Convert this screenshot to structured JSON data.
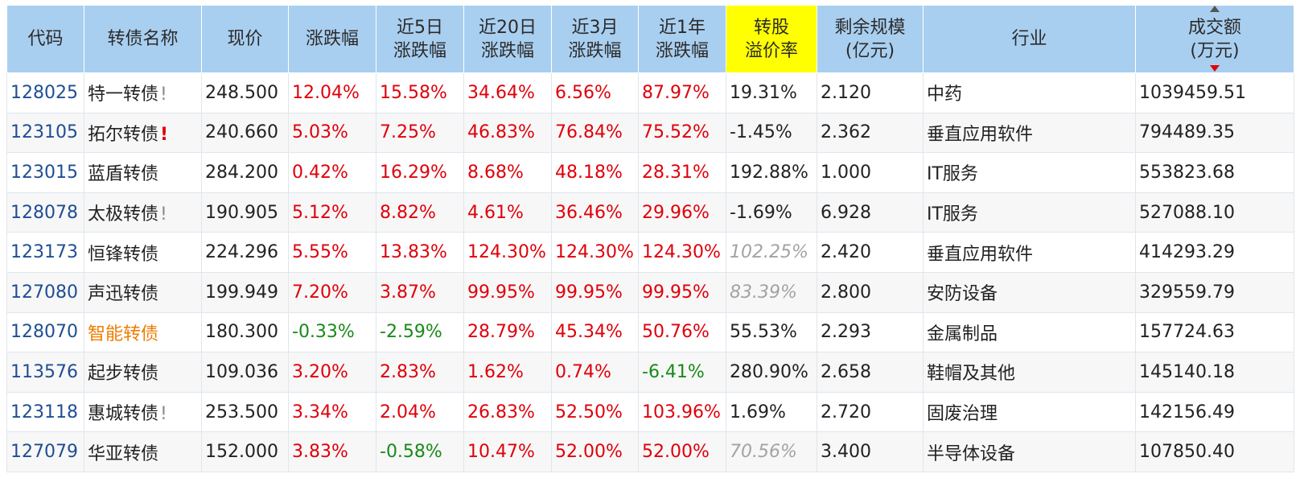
{
  "columns": [
    {
      "key": "code",
      "label": "代码"
    },
    {
      "key": "name",
      "label": "转债名称"
    },
    {
      "key": "price",
      "label": "现价"
    },
    {
      "key": "chg",
      "label": "涨跌幅"
    },
    {
      "key": "chg5d",
      "label": "近5日\n涨跌幅"
    },
    {
      "key": "chg20d",
      "label": "近20日\n涨跌幅"
    },
    {
      "key": "chg3m",
      "label": "近3月\n涨跌幅"
    },
    {
      "key": "chg1y",
      "label": "近1年\n涨跌幅"
    },
    {
      "key": "premium",
      "label": "转股\n溢价率"
    },
    {
      "key": "remain",
      "label": "剩余规模\n(亿元)"
    },
    {
      "key": "industry",
      "label": "行业"
    },
    {
      "key": "turnover",
      "label": "成交额\n(万元)"
    }
  ],
  "colors": {
    "header_bg": "#a9cff0",
    "highlight_bg": "#ffff00",
    "up": "#e0000a",
    "down": "#188a18",
    "code": "#1f4e93",
    "orange": "#ee7d00",
    "gray": "#a3a3a3"
  },
  "sort_indicator": "turnover-descending",
  "rows": [
    {
      "code": "128025",
      "name": "特一转债",
      "flag": "!",
      "flag_style": "gray",
      "name_style": "",
      "price": "248.500",
      "chg": "12.04%",
      "chg_c": "up",
      "chg5d": "15.58%",
      "chg5d_c": "up",
      "chg20d": "34.64%",
      "chg20d_c": "up",
      "chg3m": "6.56%",
      "chg3m_c": "up",
      "chg1y": "87.97%",
      "chg1y_c": "up",
      "premium": "19.31%",
      "premium_style": "",
      "remain": "2.120",
      "industry": "中药",
      "turnover": "1039459.51"
    },
    {
      "code": "123105",
      "name": "拓尔转债",
      "flag": "!",
      "flag_style": "red",
      "name_style": "",
      "price": "240.660",
      "chg": "5.03%",
      "chg_c": "up",
      "chg5d": "7.25%",
      "chg5d_c": "up",
      "chg20d": "46.83%",
      "chg20d_c": "up",
      "chg3m": "76.84%",
      "chg3m_c": "up",
      "chg1y": "75.52%",
      "chg1y_c": "up",
      "premium": "-1.45%",
      "premium_style": "",
      "remain": "2.362",
      "industry": "垂直应用软件",
      "turnover": "794489.35"
    },
    {
      "code": "123015",
      "name": "蓝盾转债",
      "flag": "",
      "flag_style": "",
      "name_style": "",
      "price": "284.200",
      "chg": "0.42%",
      "chg_c": "up",
      "chg5d": "16.29%",
      "chg5d_c": "up",
      "chg20d": "8.68%",
      "chg20d_c": "up",
      "chg3m": "48.18%",
      "chg3m_c": "up",
      "chg1y": "28.31%",
      "chg1y_c": "up",
      "premium": "192.88%",
      "premium_style": "",
      "remain": "1.000",
      "industry": "IT服务",
      "turnover": "553823.68"
    },
    {
      "code": "128078",
      "name": "太极转债",
      "flag": "!",
      "flag_style": "gray",
      "name_style": "",
      "price": "190.905",
      "chg": "5.12%",
      "chg_c": "up",
      "chg5d": "8.82%",
      "chg5d_c": "up",
      "chg20d": "4.61%",
      "chg20d_c": "up",
      "chg3m": "36.46%",
      "chg3m_c": "up",
      "chg1y": "29.96%",
      "chg1y_c": "up",
      "premium": "-1.69%",
      "premium_style": "",
      "remain": "6.928",
      "industry": "IT服务",
      "turnover": "527088.10"
    },
    {
      "code": "123173",
      "name": "恒锋转债",
      "flag": "",
      "flag_style": "",
      "name_style": "",
      "price": "224.296",
      "chg": "5.55%",
      "chg_c": "up",
      "chg5d": "13.83%",
      "chg5d_c": "up",
      "chg20d": "124.30%",
      "chg20d_c": "up",
      "chg3m": "124.30%",
      "chg3m_c": "up",
      "chg1y": "124.30%",
      "chg1y_c": "up",
      "premium": "102.25%",
      "premium_style": "gray-it",
      "remain": "2.420",
      "industry": "垂直应用软件",
      "turnover": "414293.29"
    },
    {
      "code": "127080",
      "name": "声迅转债",
      "flag": "",
      "flag_style": "",
      "name_style": "",
      "price": "199.949",
      "chg": "7.20%",
      "chg_c": "up",
      "chg5d": "3.87%",
      "chg5d_c": "up",
      "chg20d": "99.95%",
      "chg20d_c": "up",
      "chg3m": "99.95%",
      "chg3m_c": "up",
      "chg1y": "99.95%",
      "chg1y_c": "up",
      "premium": "83.39%",
      "premium_style": "gray-it",
      "remain": "2.800",
      "industry": "安防设备",
      "turnover": "329559.79"
    },
    {
      "code": "128070",
      "name": "智能转债",
      "flag": "",
      "flag_style": "",
      "name_style": "orange",
      "price": "180.300",
      "chg": "-0.33%",
      "chg_c": "down",
      "chg5d": "-2.59%",
      "chg5d_c": "down",
      "chg20d": "28.79%",
      "chg20d_c": "up",
      "chg3m": "45.34%",
      "chg3m_c": "up",
      "chg1y": "50.76%",
      "chg1y_c": "up",
      "premium": "55.53%",
      "premium_style": "",
      "remain": "2.293",
      "industry": "金属制品",
      "turnover": "157724.63"
    },
    {
      "code": "113576",
      "name": "起步转债",
      "flag": "",
      "flag_style": "",
      "name_style": "",
      "price": "109.036",
      "chg": "3.20%",
      "chg_c": "up",
      "chg5d": "2.83%",
      "chg5d_c": "up",
      "chg20d": "1.62%",
      "chg20d_c": "up",
      "chg3m": "0.74%",
      "chg3m_c": "up",
      "chg1y": "-6.41%",
      "chg1y_c": "down",
      "premium": "280.90%",
      "premium_style": "",
      "remain": "2.658",
      "industry": "鞋帽及其他",
      "turnover": "145140.18"
    },
    {
      "code": "123118",
      "name": "惠城转债",
      "flag": "!",
      "flag_style": "gray",
      "name_style": "",
      "price": "253.500",
      "chg": "3.34%",
      "chg_c": "up",
      "chg5d": "2.04%",
      "chg5d_c": "up",
      "chg20d": "26.83%",
      "chg20d_c": "up",
      "chg3m": "52.50%",
      "chg3m_c": "up",
      "chg1y": "103.96%",
      "chg1y_c": "up",
      "premium": "1.69%",
      "premium_style": "",
      "remain": "2.720",
      "industry": "固废治理",
      "turnover": "142156.49"
    },
    {
      "code": "127079",
      "name": "华亚转债",
      "flag": "",
      "flag_style": "",
      "name_style": "",
      "price": "152.000",
      "chg": "3.83%",
      "chg_c": "up",
      "chg5d": "-0.58%",
      "chg5d_c": "down",
      "chg20d": "10.47%",
      "chg20d_c": "up",
      "chg3m": "52.00%",
      "chg3m_c": "up",
      "chg1y": "52.00%",
      "chg1y_c": "up",
      "premium": "70.56%",
      "premium_style": "gray-it",
      "remain": "3.400",
      "industry": "半导体设备",
      "turnover": "107850.40"
    }
  ]
}
